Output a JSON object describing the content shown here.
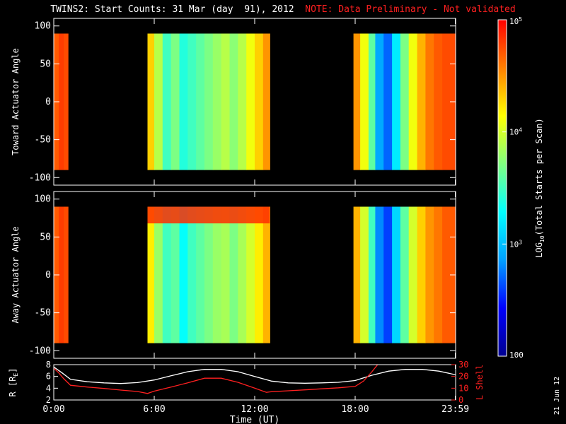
{
  "header": {
    "title": "TWINS2: Start Counts: 31 Mar (day  91), 2012",
    "note": "NOTE: Data Preliminary - Not validated"
  },
  "colorbar": {
    "label_prefix": "LOG",
    "label_sub": "10",
    "label_suffix": "(Total Starts per Scan)",
    "ticks": [
      {
        "value": 100,
        "text": "100"
      },
      {
        "value": 1000,
        "text": "10",
        "exp": "3"
      },
      {
        "value": 10000,
        "text": "10",
        "exp": "4"
      },
      {
        "value": 100000,
        "text": "10",
        "exp": "5"
      }
    ],
    "range_log": [
      2,
      5
    ],
    "colors": [
      "#000090",
      "#0000ff",
      "#00a0ff",
      "#00ffff",
      "#80ff80",
      "#ffff00",
      "#ff8000",
      "#ff0000",
      "#ffffff"
    ]
  },
  "time_axis": {
    "label": "Time (UT)",
    "ticks": [
      {
        "hour": 0,
        "text": "0:00"
      },
      {
        "hour": 6,
        "text": "6:00"
      },
      {
        "hour": 12,
        "text": "12:00"
      },
      {
        "hour": 18,
        "text": "18:00"
      },
      {
        "hour": 23.98,
        "text": "23:59"
      }
    ],
    "range": [
      0,
      24
    ]
  },
  "side_label": "21 Jun 12",
  "chart_data": [
    {
      "type": "heatmap",
      "panel": "toward",
      "ylabel": "Toward Actuator Angle",
      "ylim": [
        -110,
        110
      ],
      "yticks": [
        100,
        50,
        0,
        -50,
        -100
      ],
      "angle_range": [
        -90,
        90
      ],
      "data_intervals_hours": [
        [
          0.0,
          0.85
        ],
        [
          5.6,
          12.9
        ],
        [
          17.9,
          23.98
        ]
      ],
      "columns_log10_counts": [
        [
          0.0,
          4.7
        ],
        [
          0.3,
          4.8
        ],
        [
          0.6,
          4.75
        ],
        [
          0.85,
          null
        ],
        [
          5.6,
          4.3
        ],
        [
          6.0,
          3.9
        ],
        [
          6.5,
          3.5
        ],
        [
          7.0,
          3.7
        ],
        [
          7.5,
          3.4
        ],
        [
          8.0,
          3.5
        ],
        [
          8.5,
          3.6
        ],
        [
          9.0,
          3.7
        ],
        [
          9.5,
          3.8
        ],
        [
          10.0,
          3.9
        ],
        [
          10.5,
          3.75
        ],
        [
          11.0,
          3.9
        ],
        [
          11.5,
          4.1
        ],
        [
          12.0,
          4.3
        ],
        [
          12.5,
          4.5
        ],
        [
          12.9,
          null
        ],
        [
          17.9,
          4.5
        ],
        [
          18.3,
          4.1
        ],
        [
          18.8,
          3.6
        ],
        [
          19.2,
          2.9
        ],
        [
          19.7,
          2.7
        ],
        [
          20.2,
          3.2
        ],
        [
          20.7,
          3.7
        ],
        [
          21.2,
          4.1
        ],
        [
          21.7,
          4.4
        ],
        [
          22.2,
          4.6
        ],
        [
          22.7,
          4.7
        ],
        [
          23.2,
          4.75
        ],
        [
          23.98,
          null
        ]
      ]
    },
    {
      "type": "heatmap",
      "panel": "away",
      "ylabel": "Away Actuator Angle",
      "ylim": [
        -110,
        110
      ],
      "yticks": [
        100,
        50,
        0,
        -50,
        -100
      ],
      "angle_range": [
        -90,
        90
      ],
      "data_intervals_hours": [
        [
          0.0,
          0.85
        ],
        [
          5.6,
          12.9
        ],
        [
          17.9,
          23.98
        ]
      ],
      "high_band_angle": [
        68,
        90
      ],
      "columns_log10_counts": [
        [
          0.0,
          4.7
        ],
        [
          0.3,
          4.8
        ],
        [
          0.6,
          4.75
        ],
        [
          0.85,
          null
        ],
        [
          5.6,
          4.2
        ],
        [
          6.0,
          3.8
        ],
        [
          6.5,
          3.5
        ],
        [
          7.0,
          3.6
        ],
        [
          7.5,
          3.3
        ],
        [
          8.0,
          3.5
        ],
        [
          8.5,
          3.6
        ],
        [
          9.0,
          3.7
        ],
        [
          9.5,
          3.8
        ],
        [
          10.0,
          3.85
        ],
        [
          10.5,
          3.7
        ],
        [
          11.0,
          3.85
        ],
        [
          11.5,
          4.0
        ],
        [
          12.0,
          4.2
        ],
        [
          12.5,
          4.4
        ],
        [
          12.9,
          null
        ],
        [
          17.9,
          4.4
        ],
        [
          18.3,
          4.0
        ],
        [
          18.8,
          3.5
        ],
        [
          19.2,
          2.8
        ],
        [
          19.7,
          2.6
        ],
        [
          20.2,
          3.1
        ],
        [
          20.7,
          3.6
        ],
        [
          21.2,
          4.0
        ],
        [
          21.7,
          4.3
        ],
        [
          22.2,
          4.5
        ],
        [
          22.7,
          4.6
        ],
        [
          23.2,
          4.7
        ],
        [
          23.98,
          null
        ]
      ]
    },
    {
      "type": "line",
      "panel": "ephemeris",
      "ylabel_left": "R [R",
      "ylabel_left_sub": "E",
      "ylabel_left_end": "]",
      "ylabel_right": "L Shell",
      "ylim_left": [
        2,
        8
      ],
      "ylim_right": [
        0,
        30
      ],
      "yticks_left": [
        8,
        6,
        4,
        2
      ],
      "yticks_right": [
        30,
        20,
        10,
        0
      ],
      "series": [
        {
          "color": "#ffffff",
          "axis": "left",
          "x": [
            0,
            0.5,
            1,
            2,
            3,
            4,
            5,
            6,
            7,
            8,
            9,
            10,
            11,
            12,
            13,
            14,
            15,
            16,
            17,
            18,
            19,
            20,
            21,
            22,
            23,
            23.98
          ],
          "y": [
            7.6,
            6.6,
            5.5,
            5.1,
            4.9,
            4.8,
            4.95,
            5.4,
            6.1,
            6.8,
            7.2,
            7.2,
            6.8,
            6.0,
            5.2,
            4.9,
            4.85,
            4.9,
            5.0,
            5.3,
            6.2,
            6.9,
            7.2,
            7.2,
            6.9,
            6.3
          ]
        },
        {
          "color": "#ff2020",
          "axis": "right",
          "x": [
            0,
            0.3,
            0.6,
            1,
            2,
            3,
            4,
            5,
            5.6,
            6,
            7,
            8,
            9,
            10,
            11,
            12,
            12.7,
            13,
            14,
            15,
            16,
            17,
            18,
            18.5,
            19,
            19.4
          ],
          "y": [
            27,
            23,
            18,
            12.5,
            11,
            9.8,
            8.4,
            7.2,
            5.5,
            7.5,
            11,
            14.5,
            18.5,
            18.5,
            15,
            10,
            6.5,
            7,
            7.8,
            8.6,
            9.5,
            10.3,
            11.5,
            16,
            24,
            31
          ]
        }
      ]
    }
  ]
}
